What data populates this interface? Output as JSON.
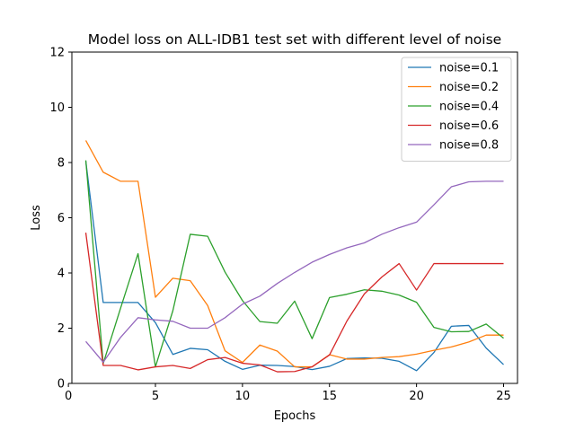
{
  "chart_data": {
    "type": "line",
    "title": "Model loss on ALL-IDB1 test set with different level of noise",
    "xlabel": "Epochs",
    "ylabel": "Loss",
    "xlim": [
      0.2,
      25.8
    ],
    "ylim": [
      0,
      12
    ],
    "xticks": [
      0,
      5,
      10,
      15,
      20,
      25
    ],
    "yticks": [
      0,
      2,
      4,
      6,
      8,
      10,
      12
    ],
    "grid": false,
    "legend_position": "top-right",
    "x": [
      1,
      2,
      3,
      4,
      5,
      6,
      7,
      8,
      9,
      10,
      11,
      12,
      13,
      14,
      15,
      16,
      17,
      18,
      19,
      20,
      21,
      22,
      23,
      24,
      25
    ],
    "series": [
      {
        "name": "noise=0.1",
        "color": "#1f77b4",
        "values": [
          8.05,
          2.93,
          2.93,
          2.93,
          2.2,
          1.05,
          1.27,
          1.22,
          0.8,
          0.51,
          0.66,
          0.65,
          0.61,
          0.5,
          0.62,
          0.9,
          0.92,
          0.91,
          0.8,
          0.46,
          1.12,
          2.07,
          2.1,
          1.28,
          0.68
        ]
      },
      {
        "name": "noise=0.2",
        "color": "#ff7f0e",
        "values": [
          8.8,
          7.65,
          7.32,
          7.32,
          3.12,
          3.81,
          3.72,
          2.82,
          1.18,
          0.76,
          1.39,
          1.17,
          0.6,
          0.6,
          1.04,
          0.88,
          0.88,
          0.94,
          0.97,
          1.06,
          1.2,
          1.32,
          1.5,
          1.75,
          1.75
        ]
      },
      {
        "name": "noise=0.4",
        "color": "#2ca02c",
        "values": [
          8.08,
          0.72,
          2.73,
          4.7,
          0.6,
          2.63,
          5.4,
          5.33,
          4.03,
          3.0,
          2.24,
          2.18,
          2.98,
          1.62,
          3.11,
          3.23,
          3.39,
          3.34,
          3.2,
          2.94,
          2.03,
          1.87,
          1.88,
          2.15,
          1.64
        ]
      },
      {
        "name": "noise=0.6",
        "color": "#d62728",
        "values": [
          5.46,
          0.65,
          0.65,
          0.49,
          0.6,
          0.65,
          0.54,
          0.86,
          0.94,
          0.73,
          0.67,
          0.42,
          0.43,
          0.6,
          1.03,
          2.26,
          3.24,
          3.85,
          4.34,
          3.38,
          4.34,
          4.34,
          4.34,
          4.34,
          4.34
        ]
      },
      {
        "name": "noise=0.8",
        "color": "#9467bd",
        "values": [
          1.52,
          0.77,
          1.67,
          2.38,
          2.3,
          2.25,
          2.0,
          2.0,
          2.38,
          2.87,
          3.16,
          3.62,
          4.02,
          4.39,
          4.67,
          4.91,
          5.09,
          5.4,
          5.64,
          5.84,
          6.47,
          7.12,
          7.3,
          7.32,
          7.32
        ]
      }
    ]
  }
}
